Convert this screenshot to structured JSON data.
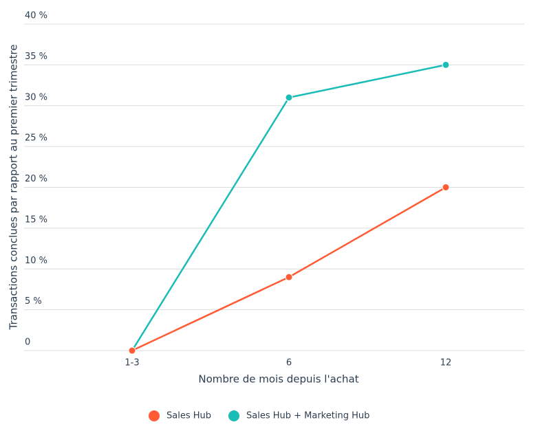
{
  "chart_data": {
    "type": "line",
    "x_label": "Nombre de mois depuis l'achat",
    "y_label": "Transactions conclues par rapport au premier trimestre",
    "categories": [
      "1-3",
      "6",
      "12"
    ],
    "series": [
      {
        "name": "Sales Hub",
        "color": "#ff5c35",
        "values": [
          0,
          9,
          20
        ]
      },
      {
        "name": "Sales Hub + Marketing Hub",
        "color": "#1bbcb5",
        "values": [
          0,
          31,
          35
        ]
      }
    ],
    "ylim": [
      0,
      40
    ],
    "yticks": [
      0,
      {
        "value": 5,
        "label": "5 %"
      },
      {
        "value": 10,
        "label": "10 %"
      },
      {
        "value": 15,
        "label": "15 %"
      },
      {
        "value": 20,
        "label": "20 %"
      },
      {
        "value": 25,
        "label": "25 %"
      },
      {
        "value": 30,
        "label": "30 %"
      },
      {
        "value": 35,
        "label": "35 %"
      },
      {
        "value": 40,
        "label": "40 %"
      }
    ],
    "grid": true
  }
}
